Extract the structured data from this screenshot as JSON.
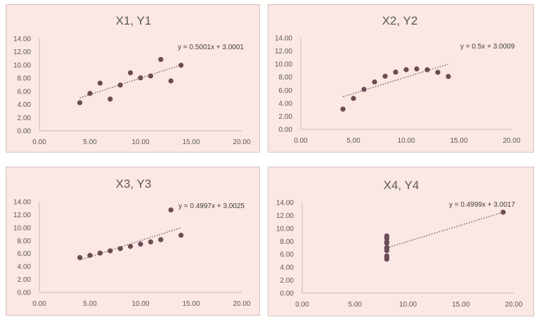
{
  "chart_data": [
    {
      "type": "scatter",
      "title": "X1, Y1",
      "trendline_equation": "y = 0.5001x + 3.0001",
      "trendline": {
        "slope": 0.5001,
        "intercept": 3.0001,
        "x_range": [
          4,
          14
        ]
      },
      "xlim": [
        0,
        20
      ],
      "ylim": [
        0,
        14
      ],
      "xticks": [
        "0.00",
        "5.00",
        "10.00",
        "15.00",
        "20.00"
      ],
      "yticks": [
        "0.00",
        "2.00",
        "4.00",
        "6.00",
        "8.00",
        "10.00",
        "12.00",
        "14.00"
      ],
      "grid": false,
      "points": [
        [
          10,
          8.04
        ],
        [
          8,
          6.95
        ],
        [
          13,
          7.58
        ],
        [
          9,
          8.81
        ],
        [
          11,
          8.33
        ],
        [
          14,
          9.96
        ],
        [
          6,
          7.24
        ],
        [
          4,
          4.26
        ],
        [
          12,
          10.84
        ],
        [
          7,
          4.82
        ],
        [
          5,
          5.68
        ]
      ]
    },
    {
      "type": "scatter",
      "title": "X2, Y2",
      "trendline_equation": "y = 0.5x + 3.0009",
      "trendline": {
        "slope": 0.5,
        "intercept": 3.0009,
        "x_range": [
          4,
          14
        ]
      },
      "xlim": [
        0,
        20
      ],
      "ylim": [
        0,
        14
      ],
      "xticks": [
        "0.00",
        "5.00",
        "10.00",
        "15.00",
        "20.00"
      ],
      "yticks": [
        "0.00",
        "2.00",
        "4.00",
        "6.00",
        "8.00",
        "10.00",
        "12.00",
        "14.00"
      ],
      "grid": false,
      "points": [
        [
          10,
          9.14
        ],
        [
          8,
          8.14
        ],
        [
          13,
          8.74
        ],
        [
          9,
          8.77
        ],
        [
          11,
          9.26
        ],
        [
          14,
          8.1
        ],
        [
          6,
          6.13
        ],
        [
          4,
          3.1
        ],
        [
          12,
          9.13
        ],
        [
          7,
          7.26
        ],
        [
          5,
          4.74
        ]
      ]
    },
    {
      "type": "scatter",
      "title": "X3, Y3",
      "trendline_equation": "y = 0.4997x + 3.0025",
      "trendline": {
        "slope": 0.4997,
        "intercept": 3.0025,
        "x_range": [
          4,
          14
        ]
      },
      "xlim": [
        0,
        20
      ],
      "ylim": [
        0,
        14
      ],
      "xticks": [
        "0.00",
        "5.00",
        "10.00",
        "15.00",
        "20.00"
      ],
      "yticks": [
        "0.00",
        "2.00",
        "4.00",
        "6.00",
        "8.00",
        "10.00",
        "12.00",
        "14.00"
      ],
      "grid": false,
      "points": [
        [
          10,
          7.46
        ],
        [
          8,
          6.77
        ],
        [
          13,
          12.74
        ],
        [
          9,
          7.11
        ],
        [
          11,
          7.81
        ],
        [
          14,
          8.84
        ],
        [
          6,
          6.08
        ],
        [
          4,
          5.39
        ],
        [
          12,
          8.15
        ],
        [
          7,
          6.42
        ],
        [
          5,
          5.73
        ]
      ]
    },
    {
      "type": "scatter",
      "title": "X4, Y4",
      "trendline_equation": "y = 0.4999x + 3.0017",
      "trendline": {
        "slope": 0.4999,
        "intercept": 3.0017,
        "x_range": [
          8,
          19
        ]
      },
      "xlim": [
        0,
        20
      ],
      "ylim": [
        0,
        14
      ],
      "xticks": [
        "0.00",
        "5.00",
        "10.00",
        "15.00",
        "20.00"
      ],
      "yticks": [
        "0.00",
        "2.00",
        "4.00",
        "6.00",
        "8.00",
        "10.00",
        "12.00",
        "14.00"
      ],
      "grid": false,
      "points": [
        [
          8,
          6.58
        ],
        [
          8,
          5.76
        ],
        [
          8,
          7.71
        ],
        [
          8,
          8.84
        ],
        [
          8,
          8.47
        ],
        [
          8,
          7.04
        ],
        [
          8,
          5.25
        ],
        [
          19,
          12.5
        ],
        [
          8,
          5.56
        ],
        [
          8,
          7.91
        ],
        [
          8,
          6.89
        ]
      ]
    }
  ]
}
